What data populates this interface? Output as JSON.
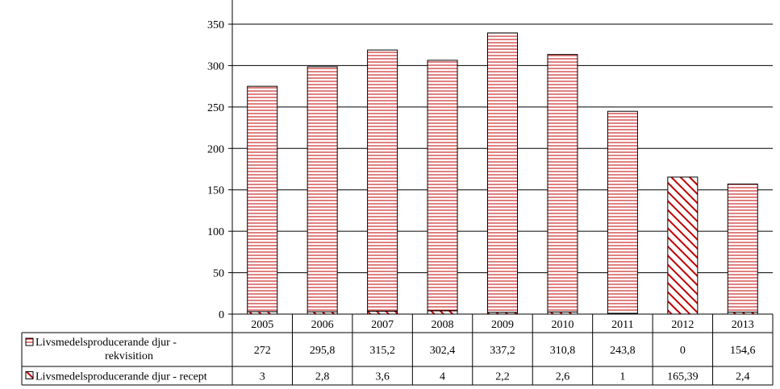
{
  "chart_data": {
    "type": "bar",
    "stacked": true,
    "categories": [
      "2005",
      "2006",
      "2007",
      "2008",
      "2009",
      "2010",
      "2011",
      "2012",
      "2013"
    ],
    "series": [
      {
        "name": "Livsmedelsproducerande djur - rekvisition",
        "legend_lines": [
          "Livsmedelsproducerande djur -",
          "rekvisition"
        ],
        "values": [
          272,
          295.8,
          315.2,
          302.4,
          337.2,
          310.8,
          243.8,
          0,
          154.6
        ],
        "labels": [
          "272",
          "295,8",
          "315,2",
          "302,4",
          "337,2",
          "310,8",
          "243,8",
          "0",
          "154,6"
        ],
        "pattern": "horizontal-stripes",
        "color": "#c00000"
      },
      {
        "name": "Livsmedelsproducerande djur - recept",
        "legend_lines": [
          "Livsmedelsproducerande djur - recept"
        ],
        "values": [
          3,
          2.8,
          3.6,
          4,
          2.2,
          2.6,
          1,
          165.39,
          2.4
        ],
        "labels": [
          "3",
          "2,8",
          "3,6",
          "4",
          "2,2",
          "2,6",
          "1",
          "165,39",
          "2,4"
        ],
        "pattern": "diagonal-stripes",
        "color": "#c00000"
      }
    ],
    "y_ticks": [
      "0",
      "50",
      "100",
      "150",
      "200",
      "250",
      "300",
      "350"
    ],
    "ylim": [
      0,
      375
    ],
    "grid": true,
    "legend": "data-table-left"
  }
}
